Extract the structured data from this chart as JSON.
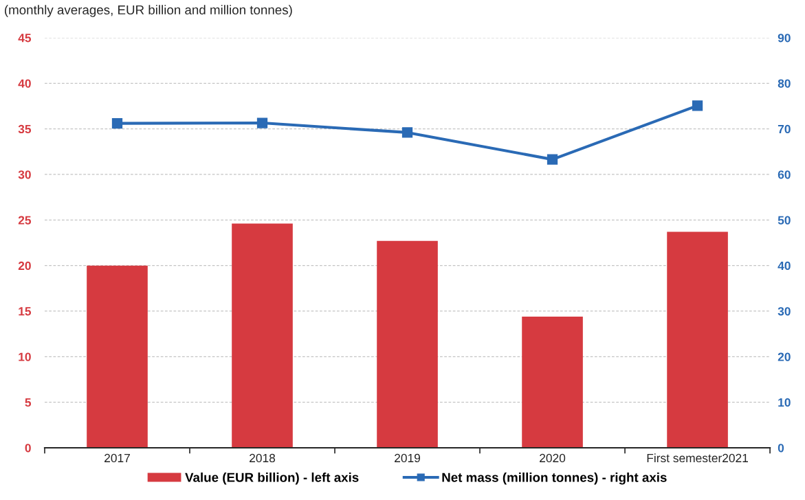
{
  "chart_data": {
    "type": "bar",
    "title": "(monthly averages, EUR billion and million tonnes)",
    "categories": [
      "2017",
      "2018",
      "2019",
      "2020",
      "First semester2021"
    ],
    "series": [
      {
        "name": "Value (EUR billion) - left axis",
        "color": "#d63a40",
        "values": [
          20.0,
          24.6,
          22.7,
          14.4,
          23.7
        ]
      },
      {
        "name": "Net mass (million tonnes) - right axis",
        "type": "line",
        "axis": "y2",
        "color": "#2a6ab5",
        "marker": "square",
        "line_style": "solid",
        "values": [
          71.2,
          71.3,
          69.2,
          63.3,
          75.1
        ]
      }
    ],
    "ylim": [
      0,
      45
    ],
    "yticks": [
      0,
      5,
      10,
      15,
      20,
      25,
      30,
      35,
      40,
      45
    ],
    "y2lim": [
      0,
      90
    ],
    "y2ticks": [
      0,
      10,
      20,
      30,
      40,
      50,
      60,
      70,
      80,
      90
    ],
    "grid": "y",
    "legend": "bottom"
  }
}
